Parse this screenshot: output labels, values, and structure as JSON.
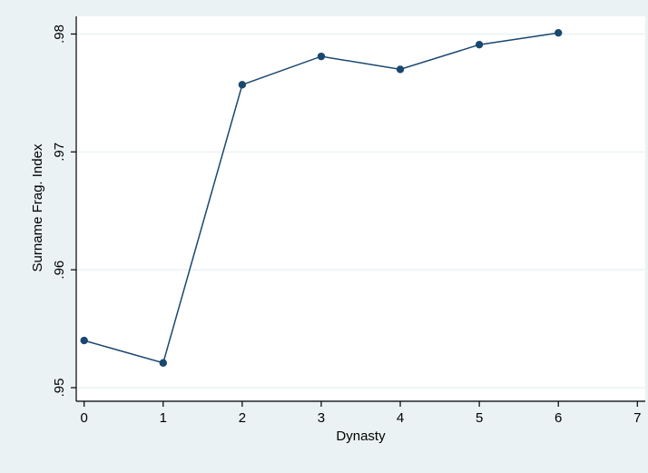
{
  "chart_data": {
    "type": "line",
    "title": "",
    "xlabel": "Dynasty",
    "ylabel": "Surname Frag. Index",
    "x": [
      0,
      1,
      2,
      3,
      4,
      5,
      6
    ],
    "series": [
      {
        "values": [
          0.954,
          0.9521,
          0.9757,
          0.9781,
          0.977,
          0.9791,
          0.9801
        ]
      }
    ],
    "xlim": [
      -0.1,
      7.1
    ],
    "ylim": [
      0.949,
      0.9815
    ],
    "x_ticks": [
      0,
      1,
      2,
      3,
      4,
      5,
      6,
      7
    ],
    "x_tick_labels": [
      "0",
      "1",
      "2",
      "3",
      "4",
      "5",
      "6",
      "7"
    ],
    "y_ticks": [
      0.95,
      0.96,
      0.97,
      0.98
    ],
    "y_tick_labels": [
      ".95",
      ".96",
      ".97",
      ".98"
    ],
    "grid": true,
    "legend": "none",
    "colors": {
      "background": "#eaf2f3",
      "plot_area": "#ffffff",
      "grid": "#eaf2f3",
      "line": "#1a476f",
      "marker": "#1a476f",
      "axis": "#000000"
    }
  }
}
